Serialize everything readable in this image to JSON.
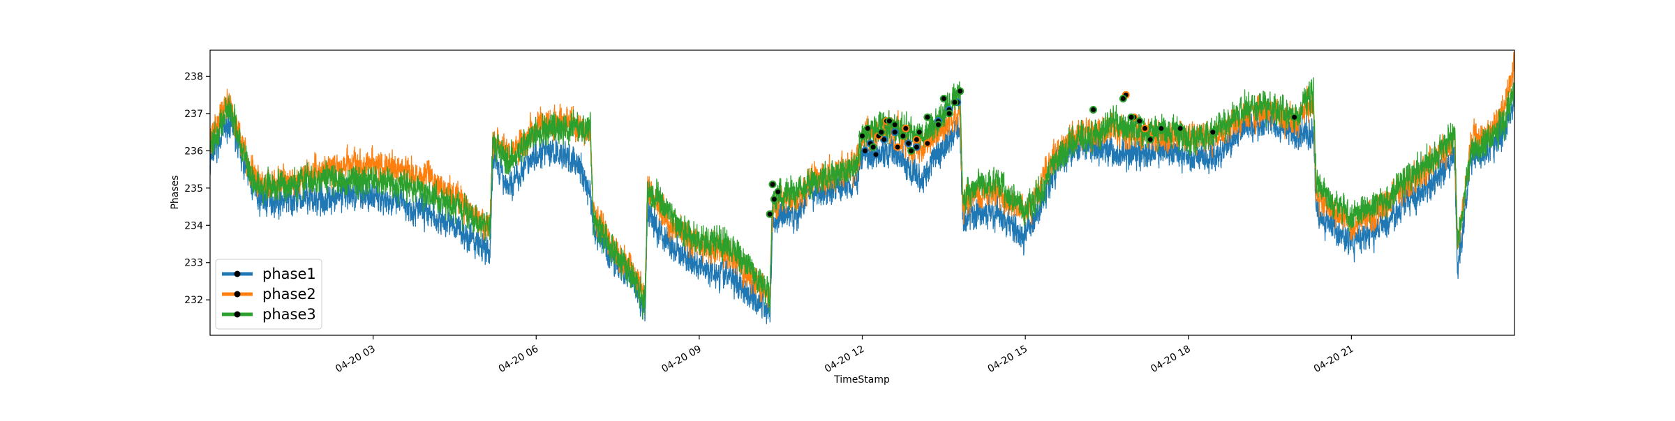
{
  "chart_data": {
    "type": "line",
    "title": "",
    "xlabel": "TimeStamp",
    "ylabel": "Phases",
    "xlim": [
      0.0,
      24.0
    ],
    "ylim": [
      231.05,
      238.7
    ],
    "grid": false,
    "legend": {
      "position": "lower-left"
    },
    "x_ticks": [
      {
        "value": 3,
        "label": "04-20 03"
      },
      {
        "value": 6,
        "label": "04-20 06"
      },
      {
        "value": 9,
        "label": "04-20 09"
      },
      {
        "value": 12,
        "label": "04-20 12"
      },
      {
        "value": 15,
        "label": "04-20 15"
      },
      {
        "value": 18,
        "label": "04-20 18"
      },
      {
        "value": 21,
        "label": "04-20 21"
      }
    ],
    "y_ticks": [
      232,
      233,
      234,
      235,
      236,
      237,
      238
    ],
    "series": [
      {
        "name": "phase1",
        "color": "#1f77b4",
        "x": [
          0.0,
          0.2,
          0.35,
          0.5,
          0.7,
          0.9,
          1.5,
          2.0,
          2.5,
          3.0,
          3.5,
          4.0,
          4.5,
          5.0,
          5.15,
          5.2,
          5.3,
          5.5,
          6.0,
          6.5,
          6.8,
          7.0,
          7.05,
          7.2,
          7.5,
          7.8,
          8.0,
          8.05,
          8.2,
          8.5,
          9.0,
          9.5,
          10.0,
          10.3,
          10.35,
          10.5,
          10.8,
          11.0,
          11.5,
          11.9,
          12.0,
          12.3,
          12.6,
          12.9,
          13.1,
          13.3,
          13.5,
          13.8,
          13.85,
          14.0,
          14.5,
          15.0,
          15.3,
          15.5,
          15.8,
          16.0,
          16.3,
          16.6,
          16.9,
          17.2,
          17.5,
          18.0,
          18.5,
          19.0,
          19.5,
          20.0,
          20.3,
          20.35,
          20.6,
          21.0,
          21.5,
          22.0,
          22.5,
          22.9,
          22.95,
          23.0,
          23.2,
          23.5,
          23.8,
          24.0
        ],
        "y": [
          235.7,
          236.4,
          236.8,
          236.2,
          235.4,
          234.7,
          234.7,
          234.7,
          234.8,
          234.8,
          234.6,
          234.3,
          234.0,
          233.4,
          233.2,
          235.8,
          235.6,
          235.0,
          236.0,
          235.9,
          235.6,
          234.8,
          234.0,
          233.6,
          232.9,
          232.4,
          231.6,
          234.4,
          234.0,
          233.4,
          232.9,
          232.7,
          232.1,
          231.7,
          234.0,
          234.3,
          234.3,
          234.8,
          235.0,
          235.2,
          236.0,
          235.9,
          236.0,
          235.4,
          235.2,
          235.8,
          236.1,
          236.7,
          234.0,
          234.3,
          234.3,
          233.7,
          234.6,
          235.4,
          236.0,
          236.2,
          236.1,
          236.0,
          235.9,
          235.9,
          236.0,
          235.9,
          235.8,
          236.6,
          236.8,
          236.4,
          236.6,
          234.4,
          234.0,
          233.5,
          233.9,
          234.6,
          235.1,
          235.8,
          232.9,
          233.3,
          235.8,
          236.0,
          236.5,
          237.3
        ],
        "marker_x": [
          12.05,
          12.15,
          12.25,
          12.4,
          12.6,
          12.85,
          13.0,
          13.4,
          13.6,
          13.75
        ],
        "marker_y": [
          236.0,
          236.2,
          235.9,
          236.3,
          236.5,
          236.2,
          236.1,
          236.8,
          237.1,
          237.3
        ]
      },
      {
        "name": "phase2",
        "color": "#ff7f0e",
        "x": [
          0.0,
          0.2,
          0.35,
          0.5,
          0.7,
          0.9,
          1.5,
          2.0,
          2.5,
          3.0,
          3.5,
          4.0,
          4.5,
          5.0,
          5.15,
          5.2,
          5.3,
          5.5,
          6.0,
          6.5,
          6.8,
          7.0,
          7.05,
          7.2,
          7.5,
          7.8,
          8.0,
          8.05,
          8.2,
          8.5,
          9.0,
          9.5,
          10.0,
          10.3,
          10.35,
          10.5,
          10.8,
          11.0,
          11.5,
          11.9,
          12.0,
          12.3,
          12.6,
          12.9,
          13.1,
          13.3,
          13.5,
          13.8,
          13.85,
          14.0,
          14.5,
          15.0,
          15.3,
          15.5,
          15.8,
          16.0,
          16.3,
          16.6,
          16.9,
          17.2,
          17.5,
          18.0,
          18.5,
          19.0,
          19.5,
          20.0,
          20.3,
          20.35,
          20.6,
          21.0,
          21.5,
          22.0,
          22.5,
          22.9,
          22.95,
          23.0,
          23.2,
          23.5,
          23.8,
          24.0
        ],
        "y": [
          236.2,
          237.0,
          237.4,
          236.6,
          235.7,
          235.1,
          235.2,
          235.5,
          235.6,
          235.6,
          235.5,
          235.3,
          234.8,
          234.1,
          233.9,
          236.3,
          236.3,
          235.9,
          236.7,
          236.8,
          236.7,
          236.4,
          234.3,
          233.9,
          233.2,
          232.8,
          232.0,
          235.0,
          234.6,
          234.0,
          233.5,
          233.3,
          232.5,
          232.0,
          234.4,
          234.8,
          234.7,
          235.2,
          235.4,
          235.6,
          236.4,
          236.5,
          236.6,
          236.1,
          236.0,
          236.4,
          236.7,
          237.0,
          234.5,
          234.8,
          234.9,
          234.3,
          235.2,
          235.8,
          236.3,
          236.5,
          236.4,
          236.6,
          236.4,
          236.5,
          236.4,
          236.4,
          236.3,
          237.0,
          237.0,
          236.8,
          237.4,
          234.8,
          234.4,
          234.0,
          234.4,
          235.1,
          235.7,
          236.3,
          233.4,
          233.9,
          236.3,
          236.5,
          237.0,
          238.2
        ],
        "marker_x": [
          12.1,
          12.3,
          12.45,
          12.65,
          12.8,
          13.0,
          13.2,
          16.85,
          17.0,
          17.2
        ],
        "marker_y": [
          236.6,
          236.4,
          236.8,
          236.1,
          236.6,
          236.3,
          236.2,
          237.5,
          236.9,
          236.6
        ]
      },
      {
        "name": "phase3",
        "color": "#2ca02c",
        "x": [
          0.0,
          0.2,
          0.35,
          0.5,
          0.7,
          0.9,
          1.5,
          2.0,
          2.5,
          3.0,
          3.5,
          4.0,
          4.5,
          5.0,
          5.15,
          5.2,
          5.3,
          5.5,
          6.0,
          6.5,
          6.8,
          7.0,
          7.05,
          7.2,
          7.5,
          7.8,
          8.0,
          8.05,
          8.2,
          8.5,
          9.0,
          9.5,
          10.0,
          10.3,
          10.35,
          10.5,
          10.8,
          11.0,
          11.5,
          11.9,
          12.0,
          12.3,
          12.6,
          12.9,
          13.1,
          13.3,
          13.5,
          13.8,
          13.85,
          14.0,
          14.5,
          15.0,
          15.3,
          15.5,
          15.8,
          16.0,
          16.3,
          16.6,
          16.9,
          17.2,
          17.5,
          18.0,
          18.5,
          19.0,
          19.5,
          20.0,
          20.3,
          20.35,
          20.6,
          21.0,
          21.5,
          22.0,
          22.5,
          22.9,
          22.95,
          23.0,
          23.2,
          23.5,
          23.8,
          24.0
        ],
        "y": [
          236.0,
          236.8,
          237.3,
          236.5,
          235.5,
          235.0,
          235.1,
          235.3,
          235.2,
          235.2,
          235.1,
          234.9,
          234.5,
          234.0,
          233.9,
          236.2,
          236.1,
          235.7,
          236.5,
          236.6,
          236.6,
          236.6,
          234.2,
          233.8,
          233.1,
          232.6,
          231.8,
          234.9,
          234.8,
          234.2,
          233.6,
          233.5,
          232.8,
          232.1,
          234.7,
          234.9,
          234.8,
          235.1,
          235.4,
          235.6,
          236.5,
          236.6,
          236.7,
          236.5,
          236.4,
          236.6,
          237.0,
          237.6,
          234.6,
          235.0,
          235.2,
          234.4,
          234.9,
          235.6,
          236.1,
          236.4,
          236.4,
          236.8,
          236.6,
          236.5,
          236.6,
          236.3,
          236.5,
          237.1,
          237.2,
          236.9,
          237.6,
          235.1,
          234.7,
          234.3,
          234.5,
          235.2,
          235.8,
          236.4,
          233.6,
          234.0,
          236.0,
          236.3,
          236.7,
          237.6
        ],
        "marker_x": [
          10.3,
          10.35,
          10.38,
          10.45,
          12.0,
          12.1,
          12.2,
          12.35,
          12.5,
          12.6,
          12.75,
          12.9,
          13.05,
          13.2,
          13.4,
          13.5,
          13.6,
          13.7,
          13.8,
          16.25,
          16.8,
          16.95,
          17.1,
          17.3,
          17.5,
          17.85,
          18.45,
          19.95
        ],
        "marker_y": [
          234.3,
          235.1,
          234.7,
          234.9,
          236.4,
          236.6,
          236.1,
          236.5,
          236.8,
          236.7,
          236.4,
          236.0,
          236.5,
          236.9,
          236.7,
          237.4,
          237.0,
          237.3,
          237.6,
          237.1,
          237.4,
          236.9,
          236.8,
          236.3,
          236.6,
          236.6,
          236.5,
          236.9
        ]
      }
    ]
  }
}
